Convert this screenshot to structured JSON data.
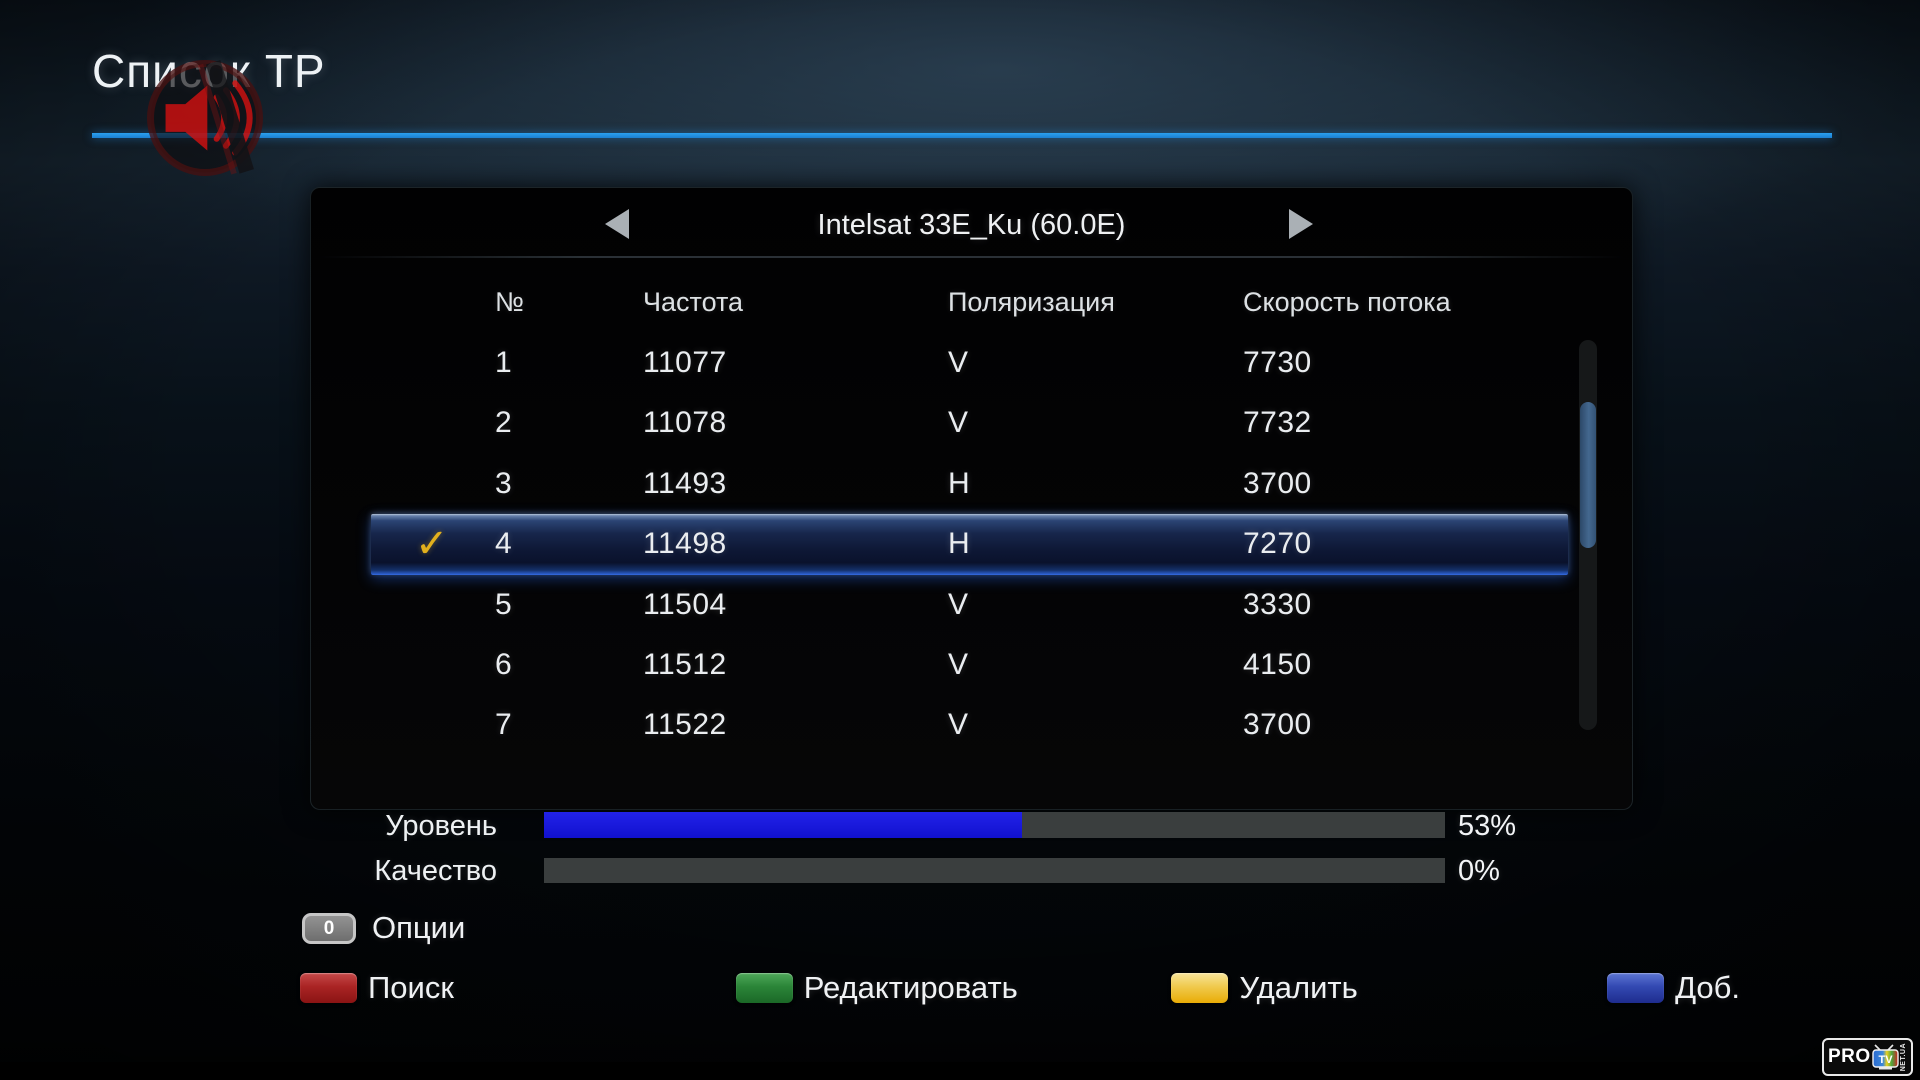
{
  "app": {
    "title": "Список ТР"
  },
  "satellite": {
    "name": "Intelsat 33E_Ku (60.0E)",
    "prev_icon": "left-arrow-icon",
    "next_icon": "right-arrow-icon"
  },
  "table": {
    "columns": [
      "№",
      "Частота",
      "Поляризация",
      "Скорость потока"
    ],
    "check_glyph": "✓",
    "rows": [
      {
        "num": "1",
        "freq": "11077",
        "pol": "V",
        "sr": "7730",
        "selected": false
      },
      {
        "num": "2",
        "freq": "11078",
        "pol": "V",
        "sr": "7732",
        "selected": false
      },
      {
        "num": "3",
        "freq": "11493",
        "pol": "H",
        "sr": "3700",
        "selected": false
      },
      {
        "num": "4",
        "freq": "11498",
        "pol": "H",
        "sr": "7270",
        "selected": true
      },
      {
        "num": "5",
        "freq": "11504",
        "pol": "V",
        "sr": "3330",
        "selected": false
      },
      {
        "num": "6",
        "freq": "11512",
        "pol": "V",
        "sr": "4150",
        "selected": false
      },
      {
        "num": "7",
        "freq": "11522",
        "pol": "V",
        "sr": "3700",
        "selected": false
      }
    ]
  },
  "signal": {
    "level_label": "Уровень",
    "level_percent": 53,
    "level_value": "53%",
    "quality_label": "Качество",
    "quality_percent": 0,
    "quality_value": "0%",
    "level_fill_color": "#1818dd",
    "bar_track_color": "#3a3e3e"
  },
  "options": {
    "key": "0",
    "label": "Опции"
  },
  "color_keys": [
    {
      "color": "red",
      "hex": "#aa2424",
      "label": "Поиск"
    },
    {
      "color": "green",
      "hex": "#2b8538",
      "label": "Редактировать"
    },
    {
      "color": "yellow",
      "hex": "#f0ca4e",
      "label": "Удалить"
    },
    {
      "color": "blue",
      "hex": "#3349b2",
      "label": "Доб."
    }
  ],
  "logo": {
    "pro": "PRO",
    "tv": "TV",
    "net": "NET.UA"
  },
  "colors": {
    "accent_line": "#2196e8",
    "selected_row": "#17264b",
    "checkmark": "#e2b01d"
  }
}
